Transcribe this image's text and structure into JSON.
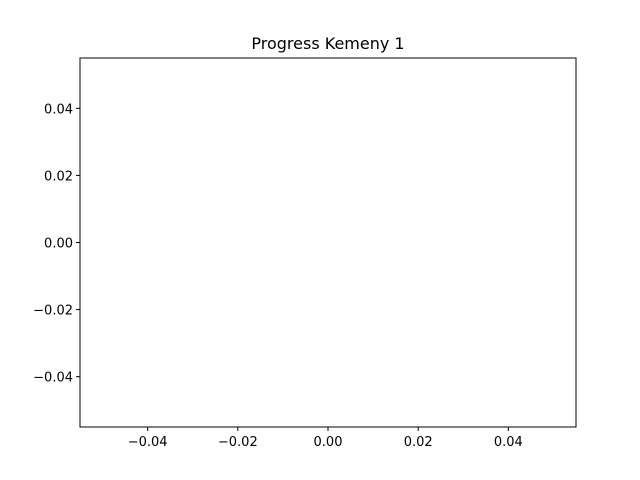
{
  "chart_data": {
    "type": "line",
    "title": "Progress Kemeny 1",
    "xlabel": "",
    "ylabel": "",
    "xlim": [
      -0.055,
      0.055
    ],
    "ylim": [
      -0.055,
      0.055
    ],
    "x_ticks": [
      -0.04,
      -0.02,
      0.0,
      0.02,
      0.04
    ],
    "x_tick_labels": [
      "−0.04",
      "−0.02",
      "0.00",
      "0.02",
      "0.04"
    ],
    "y_ticks": [
      -0.04,
      -0.02,
      0.0,
      0.02,
      0.04
    ],
    "y_tick_labels": [
      "−0.04",
      "−0.02",
      "0.00",
      "0.02",
      "0.04"
    ],
    "grid": false,
    "series": []
  }
}
